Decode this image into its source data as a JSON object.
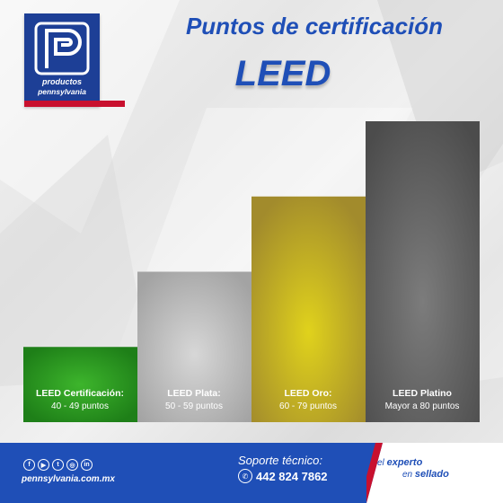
{
  "brand": {
    "logo_line1": "productos",
    "logo_line2": "pennsylvania",
    "primary_color": "#1f4fb7",
    "accent_color": "#c8102e"
  },
  "header": {
    "title": "Puntos de certificación",
    "subtitle": "LEED"
  },
  "chart_data": {
    "type": "bar",
    "title": "Puntos de certificación LEED",
    "categories": [
      "LEED Certificación:",
      "LEED Plata:",
      "LEED Oro:",
      "LEED Platino"
    ],
    "category_ranges": [
      "40 - 49 puntos",
      "50 - 59 puntos",
      "60 - 79 puntos",
      "Mayor a 80 puntos"
    ],
    "values": [
      1,
      2,
      3,
      4
    ],
    "colors": [
      "#2e9a22",
      "#b9b9b9",
      "#c9b720",
      "#6a6a6a"
    ],
    "xlabel": "",
    "ylabel": "",
    "grid": false,
    "legend": "none"
  },
  "footer": {
    "website": "pennsylvania.com.mx",
    "social_icons": [
      "facebook-icon",
      "youtube-icon",
      "twitter-icon",
      "instagram-icon",
      "linkedin-icon"
    ],
    "support_label": "Soporte técnico:",
    "phone": "442 824 7862",
    "tagline_prefix": "el",
    "tagline_strong": "experto",
    "tagline_line2_prefix": "en",
    "tagline_line2_strong": "sellado"
  }
}
